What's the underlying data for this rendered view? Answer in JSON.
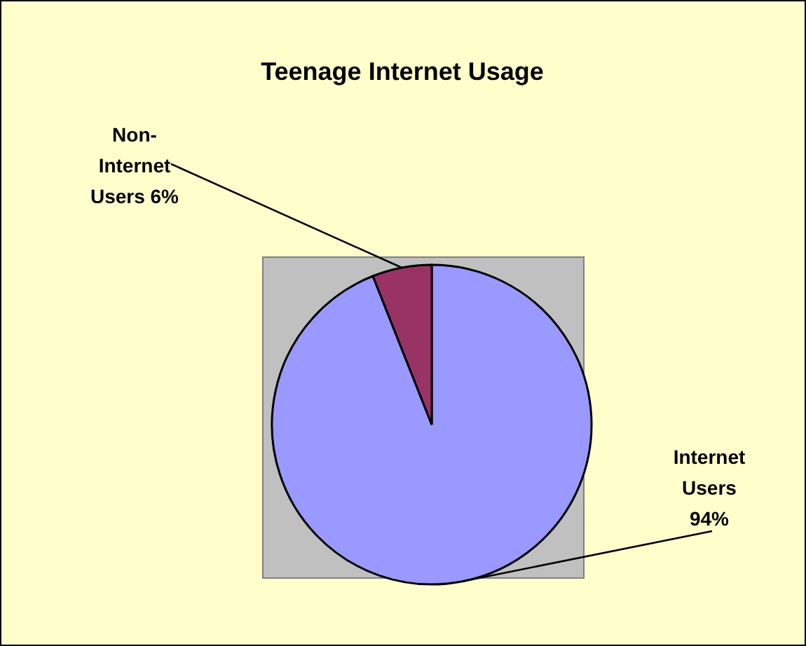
{
  "chart_data": {
    "type": "pie",
    "title": "Teenage Internet Usage",
    "categories": [
      "Internet Users",
      "Non-Internet Users"
    ],
    "values": [
      94,
      6
    ],
    "colors": [
      "#9999ff",
      "#993366"
    ],
    "value_labels": [
      "94%",
      "6%"
    ]
  }
}
